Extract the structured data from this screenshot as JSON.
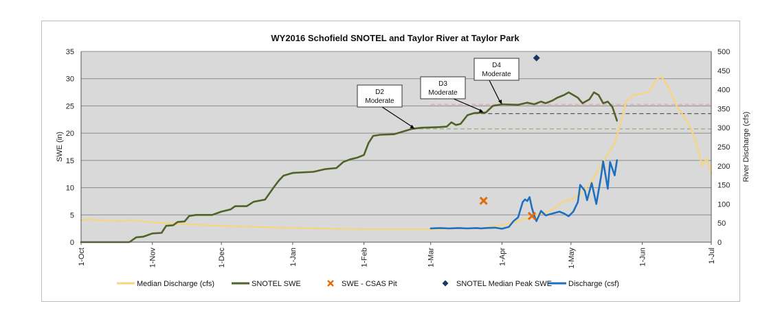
{
  "chart_data": {
    "type": "line",
    "title": "WY2016 Schofield SNOTEL and Taylor River at Taylor Park",
    "ylabel_left": "SWE (in)",
    "ylabel_right": "River Discharge (cfs)",
    "ylim_left": [
      0,
      35
    ],
    "ylim_right": [
      0,
      500
    ],
    "yticks_left": [
      "0",
      "5",
      "10",
      "15",
      "20",
      "25",
      "30",
      "35"
    ],
    "yticks_right": [
      "0",
      "50",
      "100",
      "150",
      "200",
      "250",
      "300",
      "350",
      "400",
      "450",
      "500"
    ],
    "x_start": "2015-10-01",
    "xticks": [
      {
        "label": "1-Oct",
        "date": "2015-10-01"
      },
      {
        "label": "1-Nov",
        "date": "2015-11-01"
      },
      {
        "label": "1-Dec",
        "date": "2015-12-01"
      },
      {
        "label": "1-Jan",
        "date": "2016-01-01"
      },
      {
        "label": "1-Feb",
        "date": "2016-02-01"
      },
      {
        "label": "1-Mar",
        "date": "2016-03-01"
      },
      {
        "label": "1-Apr",
        "date": "2016-04-01"
      },
      {
        "label": "1-May",
        "date": "2016-05-01"
      },
      {
        "label": "1-Jun",
        "date": "2016-06-01"
      },
      {
        "label": "1-Jul",
        "date": "2016-07-01"
      }
    ],
    "x_end": "2016-07-01",
    "grid": true,
    "legend_position": "bottom",
    "series": [
      {
        "name": "Median Discharge (cfs)",
        "axis": "right",
        "color": "#f7d57a",
        "kind": "line",
        "points": [
          [
            "2015-10-01",
            58
          ],
          [
            "2015-10-05",
            60
          ],
          [
            "2015-10-10",
            57
          ],
          [
            "2015-10-15",
            56
          ],
          [
            "2015-10-20",
            55
          ],
          [
            "2015-10-22",
            58
          ],
          [
            "2015-10-25",
            56
          ],
          [
            "2015-11-01",
            52
          ],
          [
            "2015-11-15",
            47
          ],
          [
            "2015-12-01",
            43
          ],
          [
            "2016-01-01",
            37
          ],
          [
            "2016-02-01",
            34
          ],
          [
            "2016-03-01",
            34
          ],
          [
            "2016-03-25",
            38
          ],
          [
            "2016-04-01",
            45
          ],
          [
            "2016-04-08",
            55
          ],
          [
            "2016-04-15",
            68
          ],
          [
            "2016-04-22",
            82
          ],
          [
            "2016-04-28",
            108
          ],
          [
            "2016-05-01",
            112
          ],
          [
            "2016-05-05",
            125
          ],
          [
            "2016-05-10",
            160
          ],
          [
            "2016-05-15",
            210
          ],
          [
            "2016-05-20",
            260
          ],
          [
            "2016-05-22",
            300
          ],
          [
            "2016-05-25",
            370
          ],
          [
            "2016-05-28",
            385
          ],
          [
            "2016-06-01",
            390
          ],
          [
            "2016-06-04",
            395
          ],
          [
            "2016-06-07",
            425
          ],
          [
            "2016-06-09",
            435
          ],
          [
            "2016-06-11",
            420
          ],
          [
            "2016-06-13",
            400
          ],
          [
            "2016-06-16",
            355
          ],
          [
            "2016-06-18",
            340
          ],
          [
            "2016-06-22",
            300
          ],
          [
            "2016-06-25",
            250
          ],
          [
            "2016-06-27",
            200
          ],
          [
            "2016-06-29",
            220
          ],
          [
            "2016-07-01",
            180
          ]
        ]
      },
      {
        "name": "SNOTEL SWE",
        "axis": "left",
        "color": "#4f6228",
        "kind": "line",
        "points": [
          [
            "2015-10-01",
            0
          ],
          [
            "2015-10-22",
            0
          ],
          [
            "2015-10-25",
            0.9
          ],
          [
            "2015-10-28",
            1.0
          ],
          [
            "2015-11-01",
            1.6
          ],
          [
            "2015-11-05",
            1.7
          ],
          [
            "2015-11-07",
            3.0
          ],
          [
            "2015-11-10",
            3.1
          ],
          [
            "2015-11-12",
            3.7
          ],
          [
            "2015-11-15",
            3.8
          ],
          [
            "2015-11-17",
            4.8
          ],
          [
            "2015-11-20",
            5.0
          ],
          [
            "2015-11-27",
            5.0
          ],
          [
            "2015-12-01",
            5.6
          ],
          [
            "2015-12-05",
            6.0
          ],
          [
            "2015-12-07",
            6.6
          ],
          [
            "2015-12-12",
            6.6
          ],
          [
            "2015-12-15",
            7.4
          ],
          [
            "2015-12-20",
            7.8
          ],
          [
            "2015-12-24",
            10.2
          ],
          [
            "2015-12-26",
            11.3
          ],
          [
            "2015-12-28",
            12.2
          ],
          [
            "2016-01-01",
            12.7
          ],
          [
            "2016-01-10",
            12.9
          ],
          [
            "2016-01-15",
            13.4
          ],
          [
            "2016-01-20",
            13.6
          ],
          [
            "2016-01-23",
            14.7
          ],
          [
            "2016-01-26",
            15.2
          ],
          [
            "2016-01-29",
            15.5
          ],
          [
            "2016-02-01",
            16.0
          ],
          [
            "2016-02-03",
            18.2
          ],
          [
            "2016-02-05",
            19.5
          ],
          [
            "2016-02-08",
            19.7
          ],
          [
            "2016-02-14",
            19.8
          ],
          [
            "2016-02-18",
            20.3
          ],
          [
            "2016-02-22",
            20.8
          ],
          [
            "2016-02-26",
            21.0
          ],
          [
            "2016-03-04",
            21.1
          ],
          [
            "2016-03-08",
            21.2
          ],
          [
            "2016-03-10",
            22.0
          ],
          [
            "2016-03-12",
            21.5
          ],
          [
            "2016-03-14",
            21.7
          ],
          [
            "2016-03-17",
            23.3
          ],
          [
            "2016-03-20",
            23.7
          ],
          [
            "2016-03-25",
            23.8
          ],
          [
            "2016-03-28",
            25.0
          ],
          [
            "2016-04-01",
            25.3
          ],
          [
            "2016-04-08",
            25.2
          ],
          [
            "2016-04-12",
            25.6
          ],
          [
            "2016-04-15",
            25.3
          ],
          [
            "2016-04-18",
            25.8
          ],
          [
            "2016-04-20",
            25.5
          ],
          [
            "2016-04-23",
            26.0
          ],
          [
            "2016-04-25",
            26.5
          ],
          [
            "2016-04-28",
            27.0
          ],
          [
            "2016-04-30",
            27.5
          ],
          [
            "2016-05-02",
            27.0
          ],
          [
            "2016-05-04",
            26.5
          ],
          [
            "2016-05-06",
            25.5
          ],
          [
            "2016-05-09",
            26.2
          ],
          [
            "2016-05-11",
            27.5
          ],
          [
            "2016-05-13",
            27.0
          ],
          [
            "2016-05-15",
            25.5
          ],
          [
            "2016-05-17",
            25.8
          ],
          [
            "2016-05-19",
            24.8
          ],
          [
            "2016-05-21",
            22.3
          ]
        ]
      },
      {
        "name": "SWE - CSAS Pit",
        "axis": "left",
        "color": "#e36c09",
        "kind": "x-marker",
        "points": [
          [
            "2016-03-24",
            7.6
          ],
          [
            "2016-04-14",
            4.8
          ]
        ]
      },
      {
        "name": "SNOTEL Median Peak SWE",
        "axis": "left",
        "color": "#17375e",
        "kind": "diamond-marker",
        "points": [
          [
            "2016-04-16",
            33.8
          ]
        ]
      },
      {
        "name": "Discharge (csf)",
        "axis": "right",
        "color": "#1f6fbf",
        "kind": "line",
        "points": [
          [
            "2016-03-01",
            36
          ],
          [
            "2016-03-05",
            37
          ],
          [
            "2016-03-09",
            36
          ],
          [
            "2016-03-13",
            37
          ],
          [
            "2016-03-17",
            36
          ],
          [
            "2016-03-21",
            37
          ],
          [
            "2016-03-23",
            36
          ],
          [
            "2016-03-25",
            37
          ],
          [
            "2016-03-29",
            38
          ],
          [
            "2016-04-01",
            35
          ],
          [
            "2016-04-04",
            40
          ],
          [
            "2016-04-06",
            55
          ],
          [
            "2016-04-08",
            65
          ],
          [
            "2016-04-10",
            105
          ],
          [
            "2016-04-11",
            112
          ],
          [
            "2016-04-12",
            108
          ],
          [
            "2016-04-13",
            118
          ],
          [
            "2016-04-14",
            90
          ],
          [
            "2016-04-15",
            70
          ],
          [
            "2016-04-16",
            55
          ],
          [
            "2016-04-18",
            82
          ],
          [
            "2016-04-20",
            70
          ],
          [
            "2016-04-23",
            75
          ],
          [
            "2016-04-26",
            80
          ],
          [
            "2016-04-28",
            75
          ],
          [
            "2016-04-30",
            68
          ],
          [
            "2016-05-02",
            80
          ],
          [
            "2016-05-04",
            105
          ],
          [
            "2016-05-05",
            150
          ],
          [
            "2016-05-07",
            135
          ],
          [
            "2016-05-08",
            110
          ],
          [
            "2016-05-10",
            155
          ],
          [
            "2016-05-12",
            100
          ],
          [
            "2016-05-14",
            170
          ],
          [
            "2016-05-15",
            212
          ],
          [
            "2016-05-17",
            140
          ],
          [
            "2016-05-18",
            210
          ],
          [
            "2016-05-20",
            175
          ],
          [
            "2016-05-21",
            215
          ]
        ]
      }
    ],
    "reference_lines": [
      {
        "axis": "right",
        "value": 361,
        "color": "#e6a0a8",
        "start": "2016-03-01",
        "end": "2016-07-01"
      },
      {
        "axis": "right",
        "value": 337,
        "color": "#555555",
        "start": "2016-03-20",
        "end": "2016-07-01"
      },
      {
        "axis": "right",
        "value": 297,
        "color": "#9aaa78",
        "start": "2016-02-22",
        "end": "2016-07-01"
      }
    ],
    "annotations": [
      {
        "line1": "D2",
        "line2": "Moderate",
        "target_date": "2016-02-23",
        "target_swe": 20.8
      },
      {
        "line1": "D3",
        "line2": "Moderate",
        "target_date": "2016-03-24",
        "target_swe": 23.8
      },
      {
        "line1": "D4",
        "line2": "Moderate",
        "target_date": "2016-04-01",
        "target_swe": 25.3
      }
    ]
  }
}
